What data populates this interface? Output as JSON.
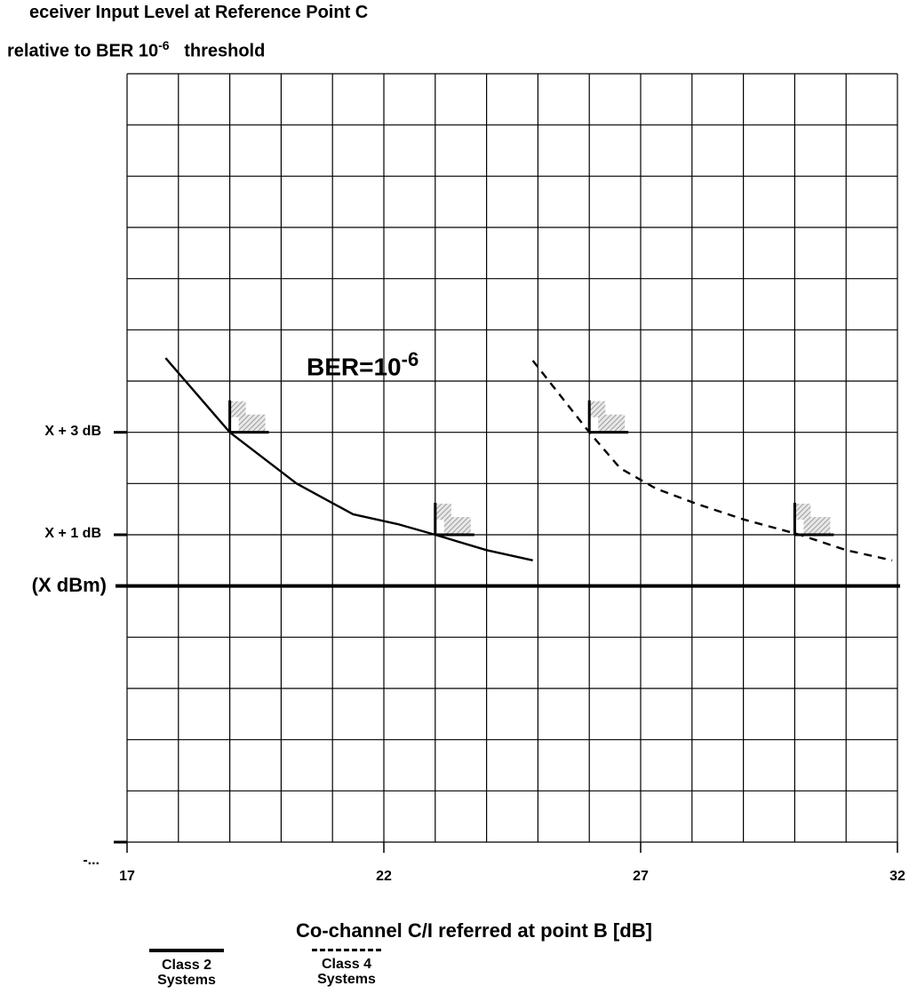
{
  "chart_data": {
    "type": "line",
    "title_line1": "eceiver Input Level at Reference Point C",
    "title_line2_prefix": "relative to BER 10",
    "title_line2_exp": "-6",
    "title_line2_suffix": "threshold",
    "xlabel": "Co-channel C/I referred at point B [dB]",
    "xlim": [
      17,
      32
    ],
    "x_ticks": [
      17,
      22,
      27,
      32
    ],
    "ylim": [
      -5,
      10
    ],
    "y_ticks": [
      {
        "value": 3,
        "label": "X + 3 dB"
      },
      {
        "value": 1,
        "label": "X + 1 dB"
      },
      {
        "value": 0,
        "label": "(X dBm)"
      },
      {
        "value": -5,
        "label": "-..."
      }
    ],
    "grid": true,
    "annotation": {
      "text": "BER=10",
      "exp": "-6"
    },
    "series": [
      {
        "name": "Class 2 Systems",
        "style": "solid",
        "color": "#000000",
        "x": [
          17.75,
          19.0,
          20.3,
          21.4,
          22.3,
          23.0,
          24.0,
          24.9
        ],
        "y": [
          4.45,
          3.0,
          2.0,
          1.4,
          1.2,
          1.0,
          0.7,
          0.5
        ]
      },
      {
        "name": "Class 4 Systems",
        "style": "dashed",
        "color": "#000000",
        "x": [
          24.9,
          26.0,
          26.6,
          27.3,
          28.1,
          29.0,
          30.1,
          31.0,
          31.9
        ],
        "y": [
          4.4,
          3.0,
          2.3,
          1.9,
          1.6,
          1.3,
          1.0,
          0.7,
          0.5
        ]
      }
    ],
    "markers": [
      {
        "x": 19.0,
        "y": 3.0
      },
      {
        "x": 23.0,
        "y": 1.0
      },
      {
        "x": 26.0,
        "y": 3.0
      },
      {
        "x": 30.0,
        "y": 1.0
      }
    ],
    "legend": [
      {
        "label_line1": "Class 2",
        "label_line2": "Systems",
        "style": "solid"
      },
      {
        "label_line1": "Class 4",
        "label_line2": "Systems",
        "style": "dashed"
      }
    ]
  }
}
